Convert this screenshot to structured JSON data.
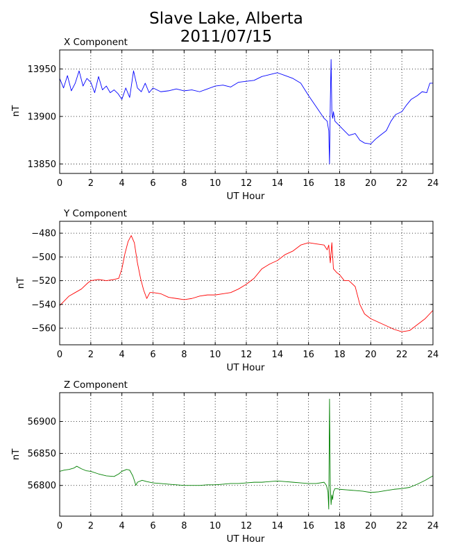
{
  "figure": {
    "title_line1": "Slave Lake, Alberta",
    "title_line2": "2011/07/15"
  },
  "chart_data": [
    {
      "type": "line",
      "title": "X Component",
      "xlabel": "UT Hour",
      "ylabel": "nT",
      "xlim": [
        0,
        24
      ],
      "ylim": [
        13840,
        13970
      ],
      "xticks": [
        0,
        2,
        4,
        6,
        8,
        10,
        12,
        14,
        16,
        18,
        20,
        22,
        24
      ],
      "yticks": [
        13850,
        13900,
        13950
      ],
      "grid": true,
      "color": "#0000ff",
      "series": [
        {
          "x": [
            0,
            0.25,
            0.5,
            0.75,
            1.0,
            1.25,
            1.5,
            1.75,
            2.0,
            2.25,
            2.5,
            2.75,
            3.0,
            3.25,
            3.5,
            3.75,
            4.0,
            4.25,
            4.5,
            4.75,
            5.0,
            5.25,
            5.5,
            5.75,
            6.0,
            6.5,
            7.0,
            7.5,
            8.0,
            8.5,
            9.0,
            9.5,
            10.0,
            10.5,
            11.0,
            11.5,
            12.0,
            12.5,
            13.0,
            13.5,
            14.0,
            14.5,
            15.0,
            15.5,
            16.0,
            16.5,
            17.0,
            17.2,
            17.3,
            17.35,
            17.4,
            17.45,
            17.5,
            17.55,
            17.6,
            17.7,
            18.0,
            18.3,
            18.6,
            19.0,
            19.3,
            19.6,
            20.0,
            20.3,
            20.6,
            21.0,
            21.3,
            21.6,
            22.0,
            22.3,
            22.6,
            23.0,
            23.3,
            23.6,
            23.8,
            24.0
          ],
          "values": [
            13940,
            13930,
            13943,
            13927,
            13935,
            13948,
            13932,
            13940,
            13936,
            13925,
            13942,
            13928,
            13932,
            13925,
            13928,
            13924,
            13918,
            13930,
            13920,
            13948,
            13930,
            13926,
            13935,
            13925,
            13930,
            13926,
            13927,
            13929,
            13927,
            13928,
            13926,
            13929,
            13932,
            13933,
            13931,
            13936,
            13937,
            13938,
            13942,
            13944,
            13946,
            13943,
            13940,
            13935,
            13922,
            13910,
            13898,
            13895,
            13885,
            13850,
            13915,
            13960,
            13905,
            13898,
            13905,
            13895,
            13890,
            13885,
            13880,
            13882,
            13875,
            13872,
            13871,
            13876,
            13880,
            13885,
            13895,
            13902,
            13905,
            13912,
            13918,
            13922,
            13926,
            13925,
            13935,
            13935
          ]
        }
      ]
    },
    {
      "type": "line",
      "title": "Y Component",
      "xlabel": "UT Hour",
      "ylabel": "nT",
      "xlim": [
        0,
        24
      ],
      "ylim": [
        -574,
        -470
      ],
      "xticks": [
        0,
        2,
        4,
        6,
        8,
        10,
        12,
        14,
        16,
        18,
        20,
        22,
        24
      ],
      "yticks": [
        -480,
        -500,
        -520,
        -540,
        -560
      ],
      "grid": true,
      "color": "#ff0000",
      "series": [
        {
          "x": [
            0,
            0.3,
            0.6,
            1.0,
            1.4,
            1.8,
            2.0,
            2.5,
            3.0,
            3.5,
            3.8,
            4.0,
            4.2,
            4.4,
            4.6,
            4.8,
            5.0,
            5.2,
            5.4,
            5.6,
            5.8,
            6.0,
            6.5,
            7.0,
            7.5,
            8.0,
            8.5,
            9.0,
            9.5,
            10.0,
            10.5,
            11.0,
            11.5,
            12.0,
            12.5,
            13.0,
            13.5,
            14.0,
            14.5,
            15.0,
            15.5,
            16.0,
            16.5,
            17.0,
            17.2,
            17.3,
            17.4,
            17.5,
            17.6,
            17.8,
            18.0,
            18.3,
            18.6,
            19.0,
            19.3,
            19.6,
            20.0,
            20.5,
            21.0,
            21.5,
            22.0,
            22.5,
            23.0,
            23.5,
            24.0
          ],
          "values": [
            -541,
            -537,
            -533,
            -530,
            -527,
            -522,
            -520,
            -519,
            -520,
            -519,
            -518,
            -510,
            -497,
            -487,
            -482,
            -488,
            -505,
            -518,
            -528,
            -535,
            -530,
            -530,
            -531,
            -534,
            -535,
            -536,
            -535,
            -533,
            -532,
            -532,
            -531,
            -530,
            -527,
            -523,
            -518,
            -510,
            -506,
            -503,
            -498,
            -495,
            -490,
            -488,
            -489,
            -490,
            -494,
            -490,
            -505,
            -488,
            -510,
            -513,
            -515,
            -520,
            -520,
            -525,
            -540,
            -548,
            -552,
            -555,
            -558,
            -561,
            -563,
            -562,
            -557,
            -552,
            -545
          ]
        }
      ]
    },
    {
      "type": "line",
      "title": "Z Component",
      "xlabel": "UT Hour",
      "ylabel": "nT",
      "xlim": [
        0,
        24
      ],
      "ylim": [
        56752,
        56945
      ],
      "xticks": [
        0,
        2,
        4,
        6,
        8,
        10,
        12,
        14,
        16,
        18,
        20,
        22,
        24
      ],
      "yticks": [
        56800,
        56850,
        56900
      ],
      "grid": true,
      "color": "#008000",
      "series": [
        {
          "x": [
            0,
            0.3,
            0.6,
            0.9,
            1.1,
            1.4,
            1.7,
            2.0,
            2.5,
            3.0,
            3.5,
            3.8,
            4.0,
            4.3,
            4.5,
            4.7,
            4.8,
            4.9,
            5.0,
            5.3,
            5.6,
            6.0,
            6.5,
            7.0,
            7.5,
            8.0,
            8.5,
            9.0,
            9.5,
            10.0,
            10.5,
            11.0,
            11.5,
            12.0,
            12.5,
            13.0,
            13.5,
            14.0,
            14.5,
            15.0,
            15.5,
            16.0,
            16.5,
            17.0,
            17.15,
            17.25,
            17.3,
            17.35,
            17.4,
            17.45,
            17.5,
            17.55,
            17.6,
            17.7,
            17.8,
            18.0,
            18.5,
            19.0,
            19.5,
            20.0,
            20.5,
            21.0,
            21.5,
            22.0,
            22.5,
            23.0,
            23.5,
            24.0
          ],
          "values": [
            56822,
            56824,
            56825,
            56827,
            56830,
            56826,
            56823,
            56822,
            56818,
            56815,
            56814,
            56818,
            56822,
            56825,
            56824,
            56815,
            56808,
            56800,
            56805,
            56808,
            56806,
            56804,
            56803,
            56802,
            56801,
            56800,
            56800,
            56800,
            56801,
            56801,
            56802,
            56803,
            56803,
            56804,
            56805,
            56805,
            56806,
            56807,
            56806,
            56805,
            56804,
            56803,
            56803,
            56805,
            56800,
            56790,
            56763,
            56935,
            56800,
            56770,
            56785,
            56778,
            56790,
            56795,
            56795,
            56794,
            56793,
            56792,
            56791,
            56789,
            56790,
            56792,
            56794,
            56795,
            56797,
            56802,
            56808,
            56815
          ]
        }
      ]
    }
  ]
}
